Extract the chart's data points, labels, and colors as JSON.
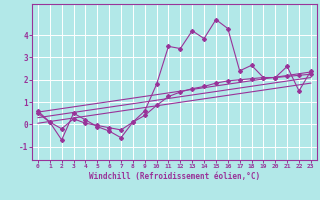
{
  "xlabel": "Windchill (Refroidissement éolien,°C)",
  "bg_color": "#b2e8e8",
  "grid_color": "#ffffff",
  "line_color": "#993399",
  "xlim": [
    -0.5,
    23.5
  ],
  "ylim": [
    -1.6,
    5.4
  ],
  "yticks": [
    -1,
    0,
    1,
    2,
    3,
    4
  ],
  "xticks": [
    0,
    1,
    2,
    3,
    4,
    5,
    6,
    7,
    8,
    9,
    10,
    11,
    12,
    13,
    14,
    15,
    16,
    17,
    18,
    19,
    20,
    21,
    22,
    23
  ],
  "main_x": [
    0,
    1,
    2,
    3,
    4,
    5,
    6,
    7,
    8,
    9,
    10,
    11,
    12,
    13,
    14,
    15,
    16,
    17,
    18,
    19,
    20,
    21,
    22,
    23
  ],
  "main_y": [
    0.6,
    0.1,
    -0.7,
    0.5,
    0.2,
    -0.1,
    -0.3,
    -0.6,
    0.1,
    0.6,
    1.8,
    3.5,
    3.4,
    4.2,
    3.85,
    4.7,
    4.3,
    2.4,
    2.65,
    2.1,
    2.1,
    2.6,
    1.5,
    2.4
  ],
  "smooth_x": [
    0,
    1,
    2,
    3,
    4,
    5,
    6,
    7,
    8,
    9,
    10,
    11,
    12,
    13,
    14,
    15,
    16,
    17,
    18,
    19,
    20,
    21,
    22,
    23
  ],
  "smooth_y": [
    0.5,
    0.1,
    -0.2,
    0.25,
    0.05,
    -0.05,
    -0.15,
    -0.25,
    0.1,
    0.4,
    0.85,
    1.25,
    1.45,
    1.6,
    1.7,
    1.85,
    1.95,
    2.0,
    2.05,
    2.1,
    2.1,
    2.15,
    2.2,
    2.25
  ],
  "reg_lines": [
    {
      "x0": 0,
      "y0": 0.55,
      "x1": 23,
      "y1": 2.35
    },
    {
      "x0": 0,
      "y0": 0.3,
      "x1": 23,
      "y1": 2.1
    },
    {
      "x0": 0,
      "y0": 0.05,
      "x1": 23,
      "y1": 1.85
    }
  ]
}
